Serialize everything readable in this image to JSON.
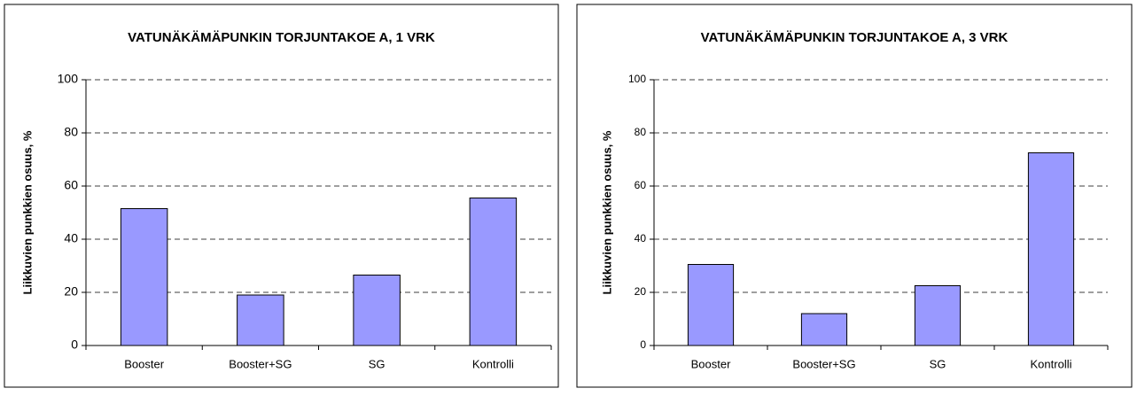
{
  "chart_data": [
    {
      "type": "bar",
      "title": "VATUNÄKÄMÄPUNKIN TORJUNTAKOE A, 1 VRK",
      "y_label": "Liikkuvien punkkien osuus, %",
      "categories": [
        "Booster",
        "Booster+SG",
        "SG",
        "Kontrolli"
      ],
      "values": [
        51.5,
        19,
        26.5,
        55.5
      ],
      "color": "#9999ff",
      "ylim": [
        0,
        100
      ],
      "yticks": [
        0,
        20,
        40,
        60,
        80,
        100
      ],
      "grid": true
    },
    {
      "type": "bar",
      "title": "VATUNÄKÄMÄPUNKIN TORJUNTAKOE A, 3 VRK",
      "y_label": "Liikkuvien punkkien osuus, %",
      "categories": [
        "Booster",
        "Booster+SG",
        "SG",
        "Kontrolli"
      ],
      "values": [
        30.5,
        12,
        22.5,
        72.5
      ],
      "color": "#9999ff",
      "ylim": [
        0,
        100
      ],
      "yticks": [
        0,
        20,
        40,
        60,
        80,
        100
      ],
      "grid": true
    }
  ]
}
